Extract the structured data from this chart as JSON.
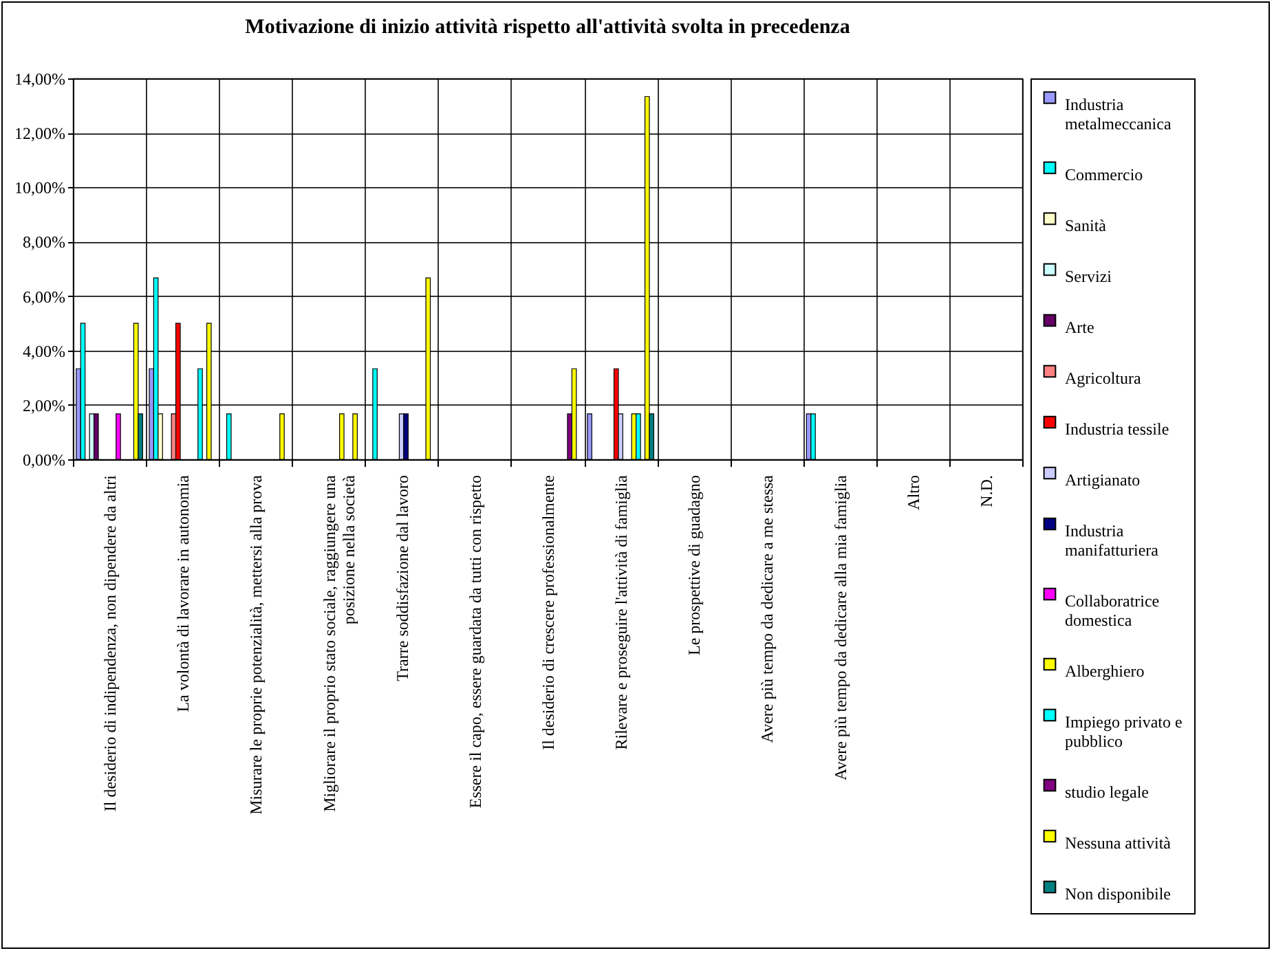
{
  "chart_data": {
    "type": "bar",
    "title": "Motivazione di inizio attività rispetto all'attività svolta in precedenza",
    "categories": [
      "Il desiderio di indipendenza, non dipendere da altri",
      "La volontà di lavorare in autonomia",
      "Misurare le proprie potenzialità, mettersi alla prova",
      "Migliorare il proprio stato sociale, raggiungere una posizione nella società",
      "Trarre soddisfazione dal lavoro",
      "Essere il capo, essere guardata da tutti con rispetto",
      "Il desiderio di crescere professionalmente",
      "Rilevare e proseguire l'attività di famiglia",
      "Le prospettive di guadagno",
      "Avere più tempo da dedicare a me stessa",
      "Avere più tempo da dedicare alla mia famiglia",
      "Altro",
      "N.D."
    ],
    "series": [
      {
        "name": "Industria metalmeccanica",
        "color": "#9999ff",
        "values": [
          3.33,
          3.33,
          null,
          null,
          null,
          null,
          null,
          1.67,
          null,
          null,
          1.67,
          null,
          null
        ]
      },
      {
        "name": "Commercio",
        "color": "#00ffff",
        "values": [
          5.0,
          6.67,
          1.67,
          null,
          3.33,
          null,
          null,
          null,
          null,
          null,
          1.67,
          null,
          null
        ]
      },
      {
        "name": "Sanità",
        "color": "#ffffcc",
        "values": [
          null,
          1.67,
          null,
          null,
          null,
          null,
          null,
          null,
          null,
          null,
          null,
          null,
          null
        ]
      },
      {
        "name": "Servizi",
        "color": "#ccffff",
        "values": [
          1.67,
          null,
          null,
          null,
          null,
          null,
          null,
          null,
          null,
          null,
          null,
          null,
          null
        ]
      },
      {
        "name": "Arte",
        "color": "#660066",
        "values": [
          1.67,
          null,
          null,
          null,
          null,
          null,
          null,
          null,
          null,
          null,
          null,
          null,
          null
        ]
      },
      {
        "name": "Agricoltura",
        "color": "#ff8080",
        "values": [
          null,
          1.67,
          null,
          null,
          null,
          null,
          null,
          null,
          null,
          null,
          null,
          null,
          null
        ]
      },
      {
        "name": "Industria tessile",
        "color": "#ff0000",
        "values": [
          null,
          5.0,
          null,
          null,
          null,
          null,
          null,
          3.33,
          null,
          null,
          null,
          null,
          null
        ]
      },
      {
        "name": "Artigianato",
        "color": "#ccccff",
        "values": [
          null,
          null,
          null,
          null,
          1.67,
          null,
          null,
          1.67,
          null,
          null,
          null,
          null,
          null
        ]
      },
      {
        "name": "Industria manifatturiera",
        "color": "#000080",
        "values": [
          null,
          null,
          null,
          null,
          1.67,
          null,
          null,
          null,
          null,
          null,
          null,
          null,
          null
        ]
      },
      {
        "name": "Collaboratrice domestica",
        "color": "#ff00ff",
        "values": [
          1.67,
          null,
          null,
          null,
          null,
          null,
          null,
          null,
          null,
          null,
          null,
          null,
          null
        ]
      },
      {
        "name": "Alberghiero",
        "color": "#ffff00",
        "values": [
          null,
          null,
          null,
          1.67,
          null,
          null,
          null,
          1.67,
          null,
          null,
          null,
          null,
          null
        ]
      },
      {
        "name": "Impiego privato e pubblico",
        "color": "#00ffff",
        "values": [
          null,
          3.33,
          null,
          null,
          null,
          null,
          null,
          1.67,
          null,
          null,
          null,
          null,
          null
        ]
      },
      {
        "name": "studio legale",
        "color": "#800080",
        "values": [
          null,
          null,
          null,
          null,
          null,
          null,
          1.67,
          null,
          null,
          null,
          null,
          null,
          null
        ]
      },
      {
        "name": "Nessuna attività",
        "color": "#ffff00",
        "values": [
          5.0,
          5.0,
          1.67,
          1.67,
          6.67,
          null,
          3.33,
          13.33,
          null,
          null,
          null,
          null,
          null
        ]
      },
      {
        "name": "Non disponibile",
        "color": "#008080",
        "values": [
          1.67,
          null,
          null,
          null,
          null,
          null,
          null,
          1.67,
          null,
          null,
          null,
          null,
          null
        ]
      }
    ],
    "ylim": [
      0,
      14
    ],
    "yticks": [
      {
        "value": 0,
        "label": "0,00%"
      },
      {
        "value": 2,
        "label": "2,00%"
      },
      {
        "value": 4,
        "label": "4,00%"
      },
      {
        "value": 6,
        "label": "6,00%"
      },
      {
        "value": 8,
        "label": "8,00%"
      },
      {
        "value": 10,
        "label": "10,00%"
      },
      {
        "value": 12,
        "label": "12,00%"
      },
      {
        "value": 14,
        "label": "14,00%"
      }
    ],
    "grid": true,
    "legend": "right"
  }
}
